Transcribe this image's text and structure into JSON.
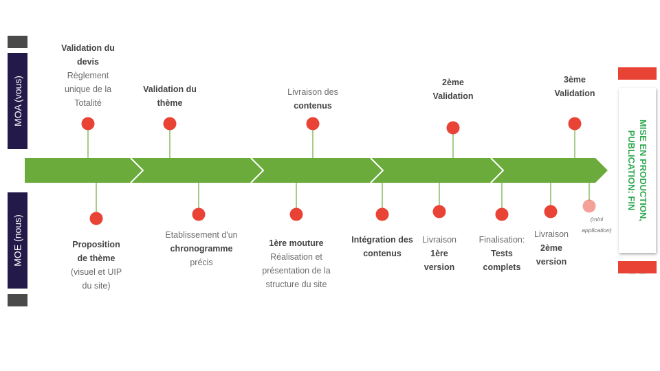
{
  "sidebar": {
    "moa": "MOA (vous)",
    "moe": "MOE (nous)"
  },
  "top_milestones": [
    {
      "bold_top": "Validation du devis",
      "normal": "Règlement unique de la Totalité"
    },
    {
      "bold_top": "Validation du thème"
    },
    {
      "normal": "Livraison des",
      "bold_bottom": "contenus"
    },
    {
      "bold_top": "2ème Validation"
    },
    {
      "bold_top": "3ème Validation"
    }
  ],
  "bottom_milestones": [
    {
      "bold_top": "Proposition de thème",
      "normal": "(visuel et UIP du site)"
    },
    {
      "normal": "Etablissement d'un",
      "bold_mid": "chronogramme",
      "normal_after": "précis"
    },
    {
      "bold_top": "1ère mouture",
      "normal": "Réalisation et présentation de la structure du site"
    },
    {
      "bold_top": "Intégration des contenus"
    },
    {
      "normal": "Livraison",
      "bold_mid": "1ère version"
    },
    {
      "normal": "Finalisation:",
      "bold_mid": "Tests complets"
    },
    {
      "normal": "Livraison",
      "bold_mid": "2ème version"
    }
  ],
  "mini_note": "(mini application)",
  "final_label": {
    "line1": "MISE EN PRODUCTION,",
    "line2": "PUBLICATION: FIN"
  },
  "colors": {
    "arrow": "#6aab3c",
    "dot": "#e94336",
    "sidebar": "#241a4a",
    "final_text": "#2ea84f"
  }
}
